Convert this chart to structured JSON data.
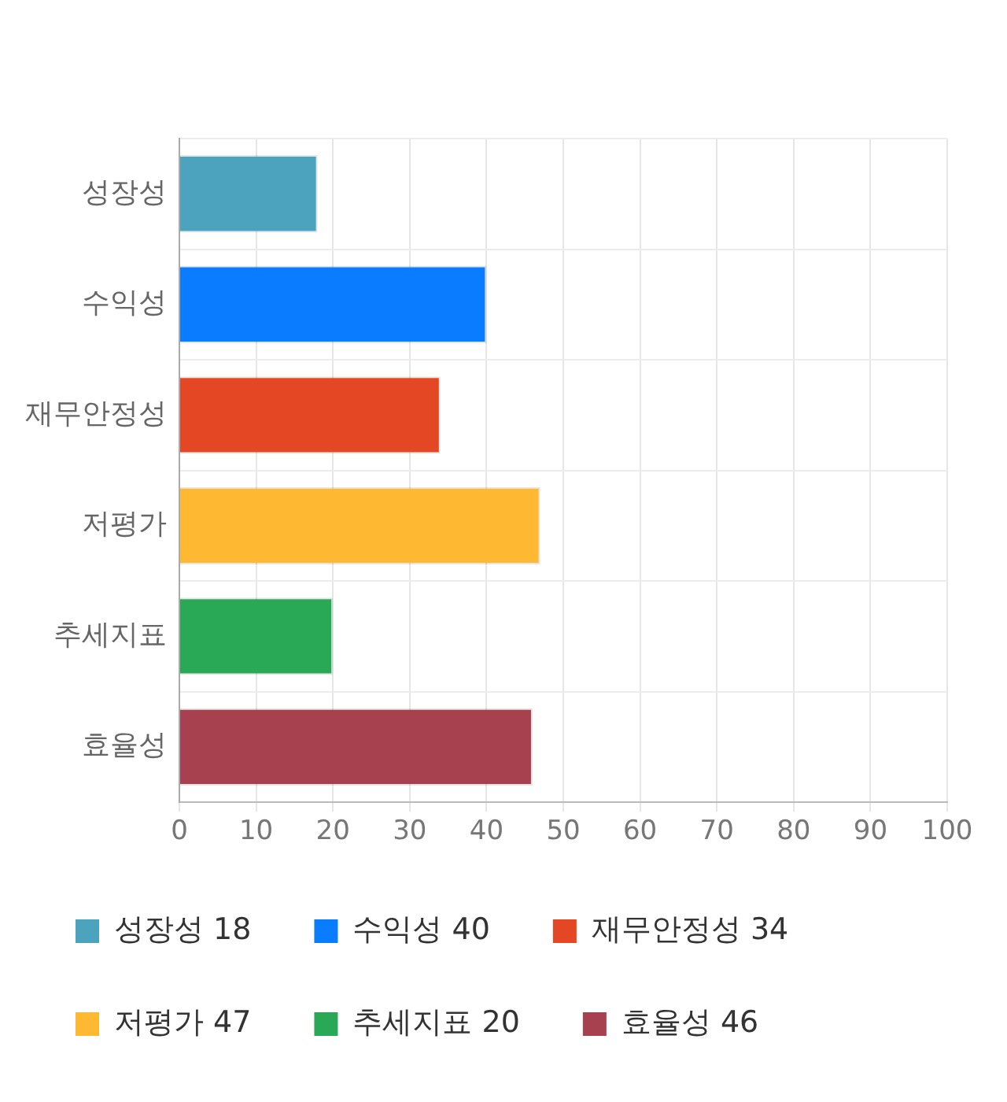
{
  "chart_data": {
    "type": "bar",
    "orientation": "horizontal",
    "categories": [
      "성장성",
      "수익성",
      "재무안정성",
      "저평가",
      "추세지표",
      "효율성"
    ],
    "series": [
      {
        "name": "성장성 18",
        "color": "#4ba3bd",
        "values": [
          18,
          null,
          null,
          null,
          null,
          null
        ]
      },
      {
        "name": "수익성 40",
        "color": "#0a7cff",
        "values": [
          null,
          40,
          null,
          null,
          null,
          null
        ]
      },
      {
        "name": "재무안정성 34",
        "color": "#e34724",
        "values": [
          null,
          null,
          34,
          null,
          null,
          null
        ]
      },
      {
        "name": "저평가 47",
        "color": "#ffb832",
        "values": [
          null,
          null,
          null,
          47,
          null,
          null
        ]
      },
      {
        "name": "추세지표 20",
        "color": "#29a855",
        "values": [
          null,
          null,
          null,
          null,
          20,
          null
        ]
      },
      {
        "name": "효율성 46",
        "color": "#a8414f",
        "values": [
          null,
          null,
          null,
          null,
          null,
          46
        ]
      }
    ],
    "xlim": [
      0,
      100
    ],
    "xticks": [
      0,
      10,
      20,
      30,
      40,
      50,
      60,
      70,
      80,
      90,
      100
    ],
    "grid": true,
    "legend": "bottom"
  }
}
